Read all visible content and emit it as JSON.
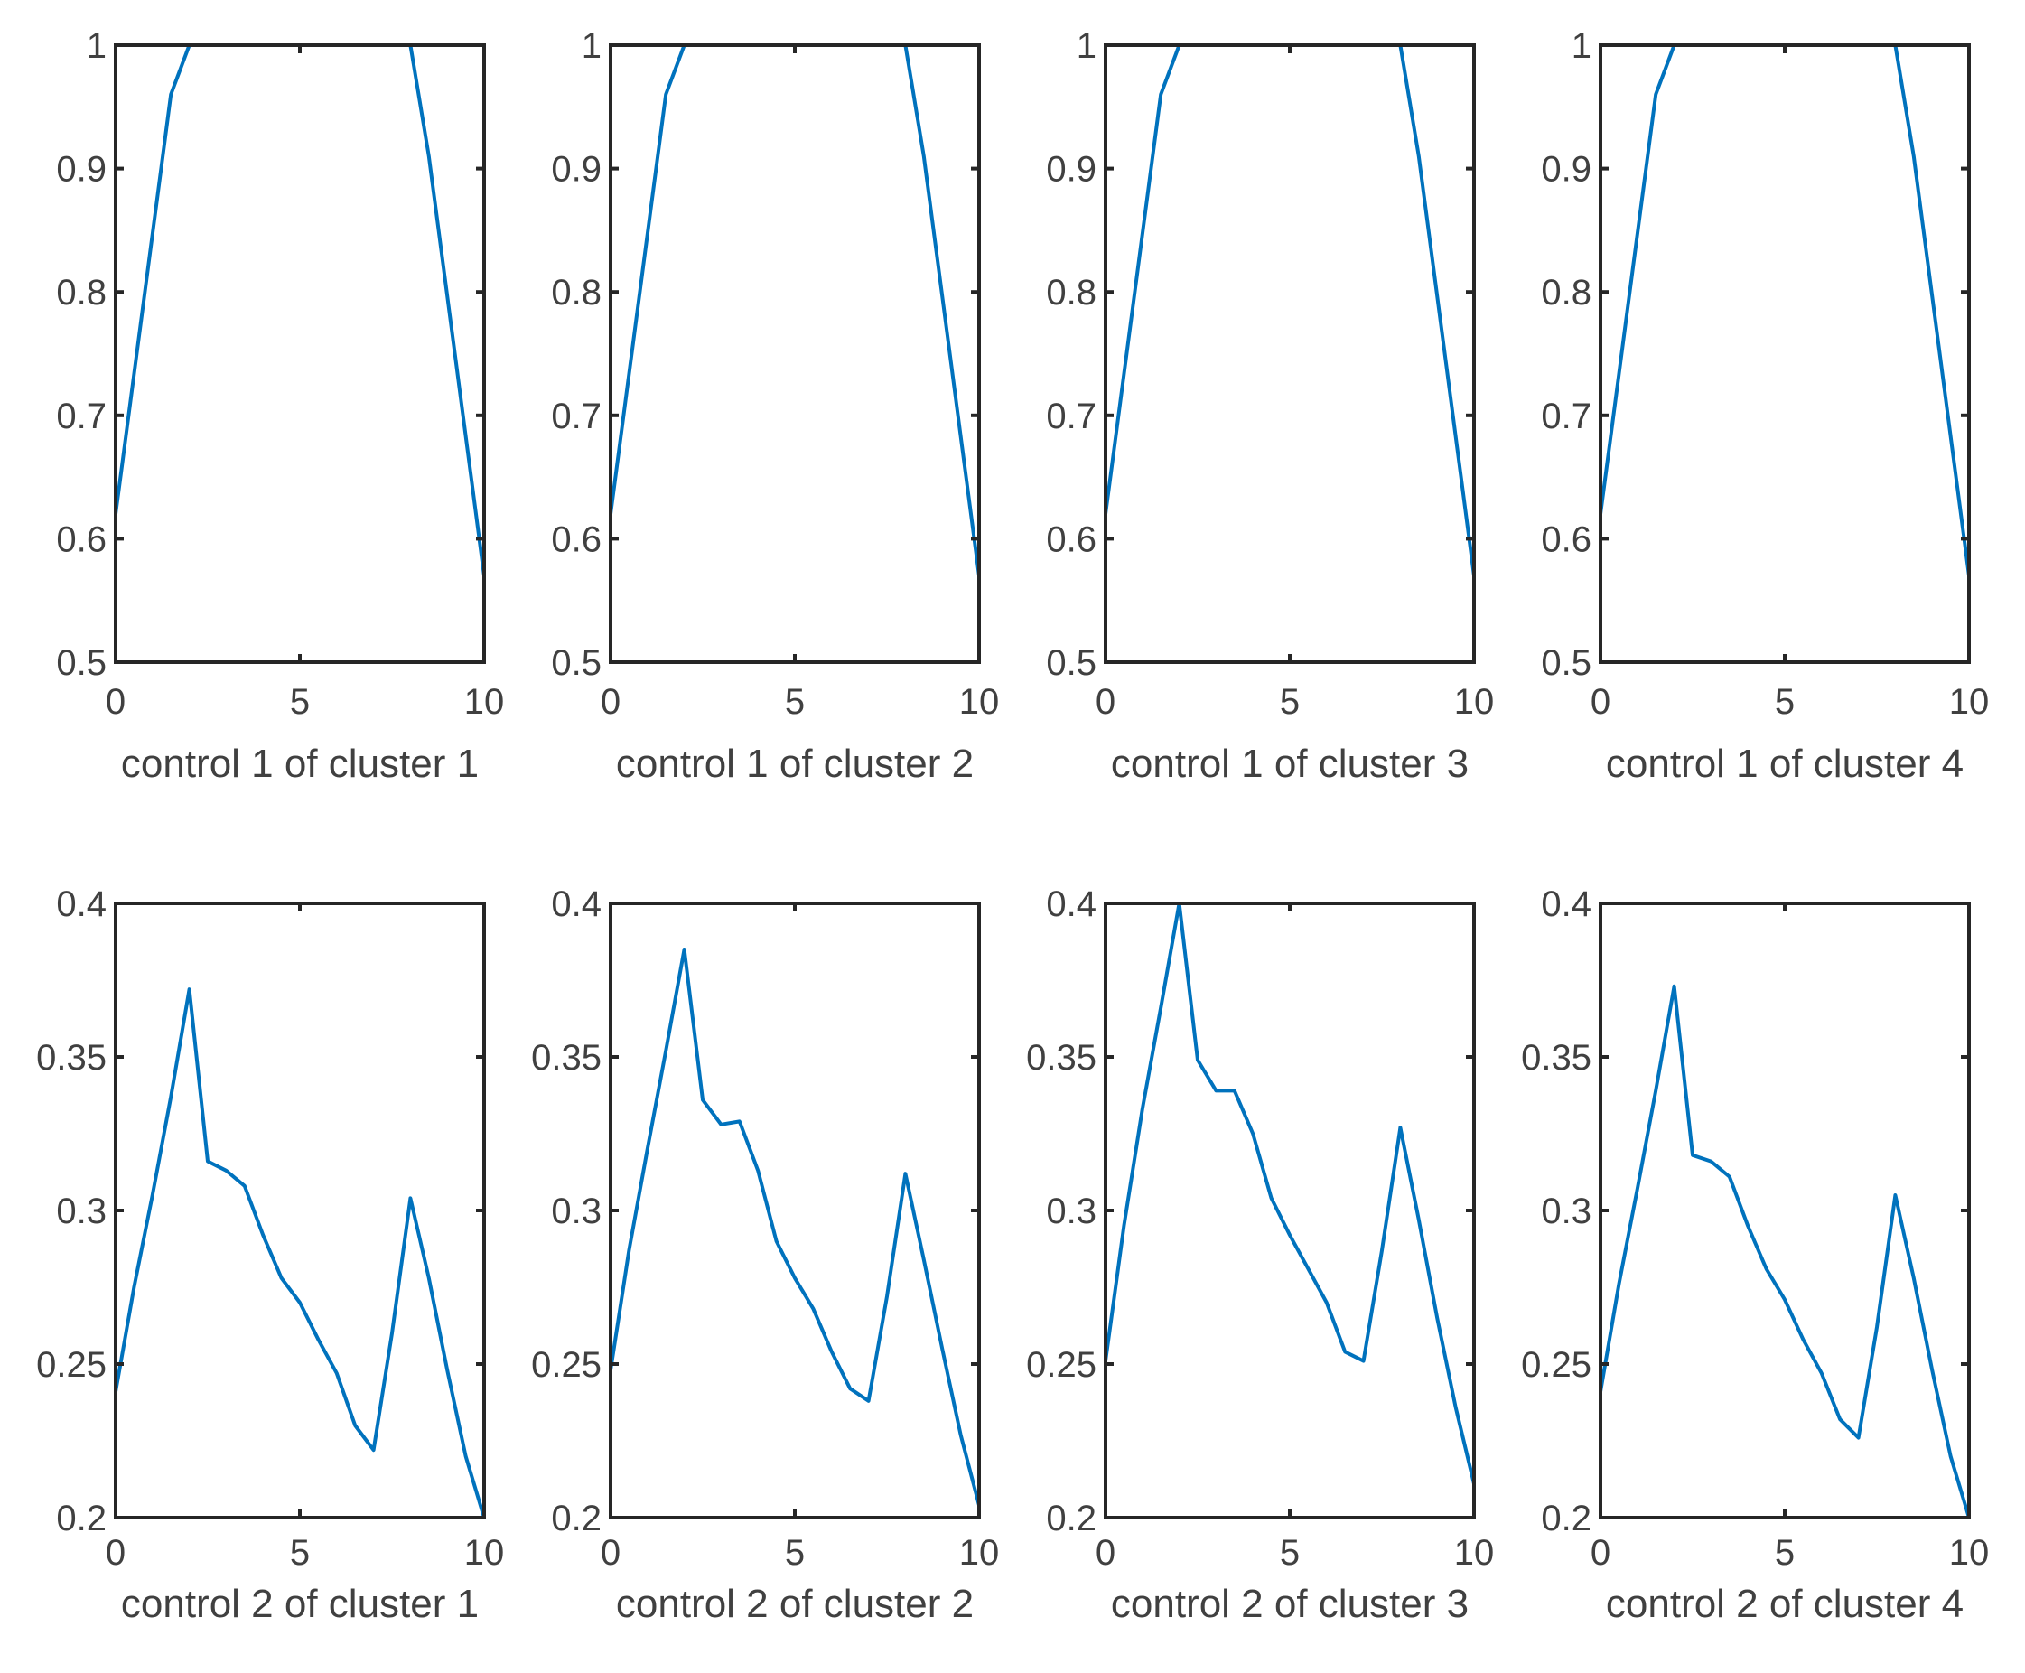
{
  "figure": {
    "layout": {
      "rows": 2,
      "cols": 4
    },
    "line_color": "#0072BD",
    "axes_color": "#262626",
    "text_color": "#404040"
  },
  "chart_data": [
    {
      "type": "line",
      "title": "",
      "xlabel": "control 1 of cluster 1",
      "ylabel": "",
      "xlim": [
        0,
        10
      ],
      "ylim": [
        0.5,
        1
      ],
      "grid": false,
      "xticks": [
        "0",
        "5",
        "10"
      ],
      "yticks": [
        "0.5",
        "0.6",
        "0.7",
        "0.8",
        "0.9",
        "1"
      ],
      "x": [
        0,
        1.5,
        2,
        8,
        8.5,
        10
      ],
      "y": [
        0.62,
        0.96,
        1.0,
        1.0,
        0.91,
        0.57
      ]
    },
    {
      "type": "line",
      "title": "",
      "xlabel": "control 1 of cluster 2",
      "ylabel": "",
      "xlim": [
        0,
        10
      ],
      "ylim": [
        0.5,
        1
      ],
      "grid": false,
      "xticks": [
        "0",
        "5",
        "10"
      ],
      "yticks": [
        "0.5",
        "0.6",
        "0.7",
        "0.8",
        "0.9",
        "1"
      ],
      "x": [
        0,
        1.5,
        2,
        8,
        8.5,
        10
      ],
      "y": [
        0.62,
        0.96,
        1.0,
        1.0,
        0.91,
        0.57
      ]
    },
    {
      "type": "line",
      "title": "",
      "xlabel": "control 1 of cluster 3",
      "ylabel": "",
      "xlim": [
        0,
        10
      ],
      "ylim": [
        0.5,
        1
      ],
      "grid": false,
      "xticks": [
        "0",
        "5",
        "10"
      ],
      "yticks": [
        "0.5",
        "0.6",
        "0.7",
        "0.8",
        "0.9",
        "1"
      ],
      "x": [
        0,
        1.5,
        2,
        8,
        8.5,
        10
      ],
      "y": [
        0.62,
        0.96,
        1.0,
        1.0,
        0.91,
        0.57
      ]
    },
    {
      "type": "line",
      "title": "",
      "xlabel": "control 1 of cluster 4",
      "ylabel": "",
      "xlim": [
        0,
        10
      ],
      "ylim": [
        0.5,
        1
      ],
      "grid": false,
      "xticks": [
        "0",
        "5",
        "10"
      ],
      "yticks": [
        "0.5",
        "0.6",
        "0.7",
        "0.8",
        "0.9",
        "1"
      ],
      "x": [
        0,
        1.5,
        2,
        8,
        8.5,
        10
      ],
      "y": [
        0.62,
        0.96,
        1.0,
        1.0,
        0.91,
        0.57
      ]
    },
    {
      "type": "line",
      "title": "",
      "xlabel": "control 2 of cluster 1",
      "ylabel": "",
      "xlim": [
        0,
        10
      ],
      "ylim": [
        0.2,
        0.4
      ],
      "grid": false,
      "xticks": [
        "0",
        "5",
        "10"
      ],
      "yticks": [
        "0.2",
        "0.25",
        "0.3",
        "0.35",
        "0.4"
      ],
      "x": [
        0,
        0.5,
        1,
        1.5,
        2,
        2.5,
        3,
        3.5,
        4,
        4.5,
        5,
        5.5,
        6,
        6.5,
        7,
        7.5,
        8,
        8.5,
        9,
        9.5,
        10
      ],
      "y": [
        0.241,
        0.275,
        0.305,
        0.337,
        0.372,
        0.316,
        0.313,
        0.308,
        0.292,
        0.278,
        0.27,
        0.258,
        0.247,
        0.23,
        0.222,
        0.26,
        0.304,
        0.278,
        0.248,
        0.22,
        0.2
      ]
    },
    {
      "type": "line",
      "title": "",
      "xlabel": "control 2 of cluster 2",
      "ylabel": "",
      "xlim": [
        0,
        10
      ],
      "ylim": [
        0.2,
        0.4
      ],
      "grid": false,
      "xticks": [
        "0",
        "5",
        "10"
      ],
      "yticks": [
        "0.2",
        "0.25",
        "0.3",
        "0.35",
        "0.4"
      ],
      "x": [
        0,
        0.5,
        1,
        1.5,
        2,
        2.5,
        3,
        3.5,
        4,
        4.5,
        5,
        5.5,
        6,
        6.5,
        7,
        7.5,
        8,
        8.5,
        9,
        9.5,
        10
      ],
      "y": [
        0.248,
        0.287,
        0.32,
        0.352,
        0.385,
        0.336,
        0.328,
        0.329,
        0.313,
        0.29,
        0.278,
        0.268,
        0.254,
        0.242,
        0.238,
        0.272,
        0.312,
        0.284,
        0.255,
        0.227,
        0.204
      ]
    },
    {
      "type": "line",
      "title": "",
      "xlabel": "control 2 of cluster 3",
      "ylabel": "",
      "xlim": [
        0,
        10
      ],
      "ylim": [
        0.2,
        0.4
      ],
      "grid": false,
      "xticks": [
        "0",
        "5",
        "10"
      ],
      "yticks": [
        "0.2",
        "0.25",
        "0.3",
        "0.35",
        "0.4"
      ],
      "x": [
        0,
        0.5,
        1,
        1.5,
        2,
        2.5,
        3,
        3.5,
        4,
        4.5,
        5,
        5.5,
        6,
        6.5,
        7,
        7.5,
        8,
        8.5,
        9,
        9.5,
        10
      ],
      "y": [
        0.251,
        0.295,
        0.333,
        0.366,
        0.4,
        0.349,
        0.339,
        0.339,
        0.325,
        0.304,
        0.292,
        0.281,
        0.27,
        0.254,
        0.251,
        0.287,
        0.327,
        0.297,
        0.265,
        0.236,
        0.211
      ]
    },
    {
      "type": "line",
      "title": "",
      "xlabel": "control 2 of cluster 4",
      "ylabel": "",
      "xlim": [
        0,
        10
      ],
      "ylim": [
        0.2,
        0.4
      ],
      "grid": false,
      "xticks": [
        "0",
        "5",
        "10"
      ],
      "yticks": [
        "0.2",
        "0.25",
        "0.3",
        "0.35",
        "0.4"
      ],
      "x": [
        0,
        0.5,
        1,
        1.5,
        2,
        2.5,
        3,
        3.5,
        4,
        4.5,
        5,
        5.5,
        6,
        6.5,
        7,
        7.5,
        8,
        8.5,
        9,
        9.5,
        10
      ],
      "y": [
        0.241,
        0.276,
        0.307,
        0.339,
        0.373,
        0.318,
        0.316,
        0.311,
        0.295,
        0.281,
        0.271,
        0.258,
        0.247,
        0.232,
        0.226,
        0.262,
        0.305,
        0.278,
        0.248,
        0.22,
        0.2
      ]
    }
  ]
}
